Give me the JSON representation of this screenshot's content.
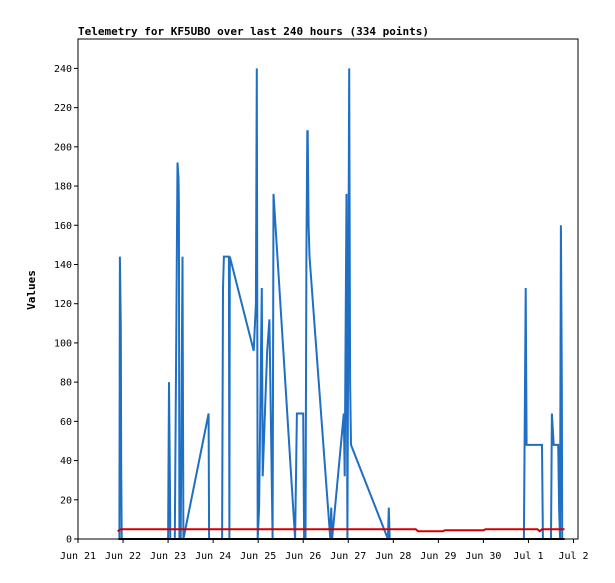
{
  "chart_data": {
    "type": "line",
    "title": "Telemetry for KF5UBO over last 240 hours (334 points)",
    "xlabel": "",
    "ylabel": "Values",
    "x_ticks": [
      "Jun 21",
      "Jun 22",
      "Jun 23",
      "Jun 24",
      "Jun 25",
      "Jun 26",
      "Jun 27",
      "Jun 28",
      "Jun 29",
      "Jun 30",
      "Jul 1",
      "Jul 2"
    ],
    "y_ticks": [
      0,
      20,
      40,
      60,
      80,
      100,
      120,
      140,
      160,
      180,
      200,
      220,
      240
    ],
    "ylim": [
      0,
      255
    ],
    "xlim_days": [
      0,
      11.1
    ],
    "grid": false,
    "series": [
      {
        "color": "#1f6fc4",
        "points": [
          [
            0.9,
            0
          ],
          [
            0.92,
            0
          ],
          [
            0.93,
            144
          ],
          [
            0.95,
            108
          ],
          [
            0.96,
            36
          ],
          [
            0.97,
            0
          ],
          [
            2.0,
            0
          ],
          [
            2.02,
            80
          ],
          [
            2.04,
            30
          ],
          [
            2.05,
            0
          ],
          [
            2.15,
            0
          ],
          [
            2.17,
            64
          ],
          [
            2.19,
            128
          ],
          [
            2.21,
            192
          ],
          [
            2.23,
            184
          ],
          [
            2.24,
            170
          ],
          [
            2.25,
            0
          ],
          [
            2.28,
            0
          ],
          [
            2.3,
            72
          ],
          [
            2.32,
            144
          ],
          [
            2.34,
            0
          ],
          [
            2.9,
            64
          ],
          [
            2.91,
            0
          ],
          [
            3.2,
            0
          ],
          [
            3.22,
            128
          ],
          [
            3.24,
            144
          ],
          [
            3.35,
            144
          ],
          [
            3.36,
            0
          ],
          [
            3.37,
            144
          ],
          [
            3.9,
            96
          ],
          [
            3.95,
            120
          ],
          [
            3.97,
            240
          ],
          [
            3.99,
            0
          ],
          [
            4.02,
            16
          ],
          [
            4.08,
            128
          ],
          [
            4.1,
            32
          ],
          [
            4.15,
            64
          ],
          [
            4.2,
            96
          ],
          [
            4.25,
            112
          ],
          [
            4.28,
            64
          ],
          [
            4.32,
            0
          ],
          [
            4.34,
            176
          ],
          [
            4.82,
            0
          ],
          [
            4.84,
            32
          ],
          [
            4.86,
            64
          ],
          [
            5.0,
            64
          ],
          [
            5.02,
            0
          ],
          [
            5.05,
            0
          ],
          [
            5.07,
            144
          ],
          [
            5.09,
            208
          ],
          [
            5.1,
            208
          ],
          [
            5.12,
            160
          ],
          [
            5.14,
            144
          ],
          [
            5.6,
            0
          ],
          [
            5.62,
            16
          ],
          [
            5.64,
            0
          ],
          [
            5.9,
            64
          ],
          [
            5.92,
            32
          ],
          [
            5.96,
            176
          ],
          [
            5.98,
            0
          ],
          [
            6.0,
            120
          ],
          [
            6.02,
            240
          ],
          [
            6.04,
            80
          ],
          [
            6.06,
            48
          ],
          [
            6.88,
            0
          ],
          [
            6.9,
            16
          ],
          [
            6.92,
            0
          ],
          [
            9.9,
            0
          ],
          [
            9.92,
            64
          ],
          [
            9.94,
            128
          ],
          [
            9.96,
            48
          ],
          [
            10.3,
            48
          ],
          [
            10.32,
            0
          ],
          [
            10.5,
            0
          ],
          [
            10.52,
            64
          ],
          [
            10.56,
            48
          ],
          [
            10.66,
            48
          ],
          [
            10.68,
            16
          ],
          [
            10.7,
            0
          ],
          [
            10.72,
            160
          ],
          [
            10.74,
            80
          ],
          [
            10.75,
            0
          ]
        ]
      },
      {
        "color": "#d00000",
        "points": [
          [
            0.88,
            4
          ],
          [
            0.95,
            5
          ],
          [
            3.0,
            5
          ],
          [
            6.0,
            5
          ],
          [
            7.0,
            5
          ],
          [
            7.5,
            5
          ],
          [
            7.55,
            4
          ],
          [
            8.1,
            4
          ],
          [
            8.15,
            4.5
          ],
          [
            9.0,
            4.5
          ],
          [
            9.05,
            5
          ],
          [
            10.0,
            5
          ],
          [
            10.2,
            5
          ],
          [
            10.25,
            4
          ],
          [
            10.3,
            5
          ],
          [
            10.8,
            5
          ]
        ]
      },
      {
        "color": "#000000",
        "points": [
          [
            0.9,
            0
          ],
          [
            10.8,
            0
          ]
        ]
      }
    ]
  }
}
